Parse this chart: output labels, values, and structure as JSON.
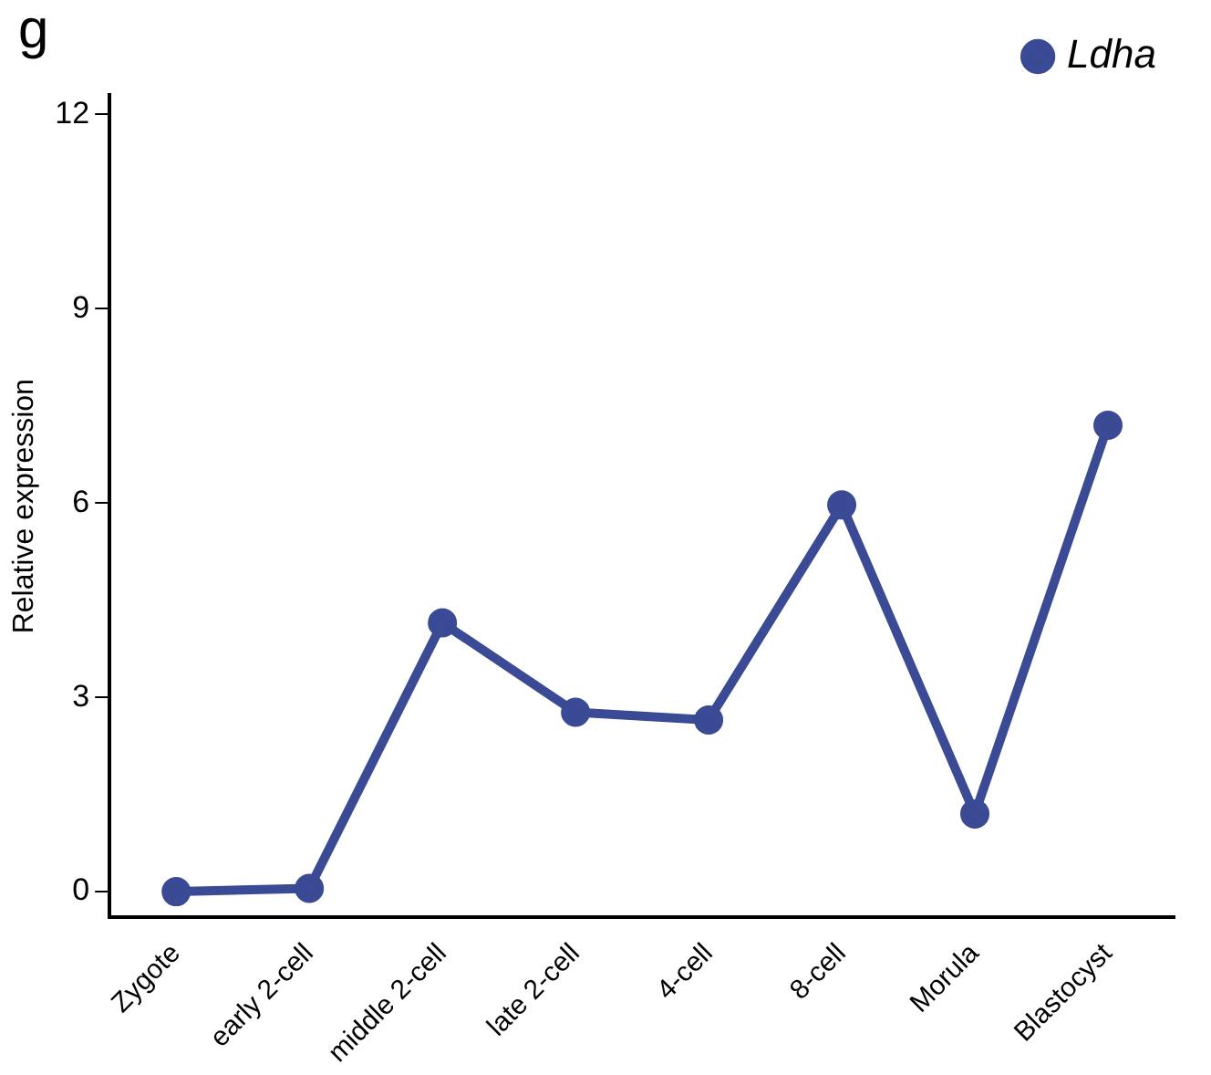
{
  "chart_data": {
    "type": "line",
    "ylabel": "Relative expression",
    "annotations": [
      "g"
    ],
    "categories": [
      "Zygote",
      "early 2-cell",
      "middle 2-cell",
      "late 2-cell",
      "4-cell",
      "8-cell",
      "Morula",
      "Blastocyst"
    ],
    "series": [
      {
        "name": "Ldha",
        "color": "#3a4a94",
        "values": [
          0.0,
          0.05,
          4.15,
          2.77,
          2.65,
          5.97,
          1.2,
          7.2
        ]
      }
    ],
    "ylim": [
      -0.4,
      12.3
    ],
    "yticks": [
      0,
      3,
      6,
      9,
      12
    ],
    "grid": false,
    "legend": "top right",
    "marker": "circle",
    "line_style": "solid"
  }
}
